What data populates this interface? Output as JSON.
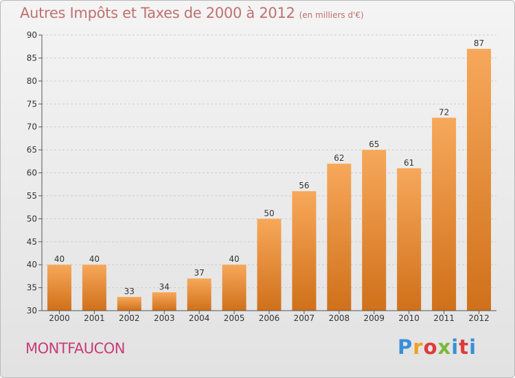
{
  "header": {
    "title": "Autres Impôts et Taxes de 2000 à 2012",
    "unit": "(en milliers d'€)"
  },
  "footer": {
    "commune": "MONTFAUCON",
    "logo_letters": [
      "P",
      "r",
      "o",
      "x",
      "i",
      "t",
      "i"
    ]
  },
  "colors": {
    "bar_top": "#f7a85a",
    "bar_bottom": "#d0701a",
    "axis": "#555555",
    "grid": "#cccccc",
    "commune": "#c83c78",
    "title": "#c07070"
  },
  "chart_data": {
    "type": "bar",
    "title": "Autres Impôts et Taxes de 2000 à 2012",
    "subtitle": "(en milliers d'€)",
    "xlabel": "",
    "ylabel": "",
    "categories": [
      "2000",
      "2001",
      "2002",
      "2003",
      "2004",
      "2005",
      "2006",
      "2007",
      "2008",
      "2009",
      "2010",
      "2011",
      "2012"
    ],
    "values": [
      40,
      40,
      33,
      34,
      37,
      40,
      50,
      56,
      62,
      65,
      61,
      72,
      87
    ],
    "ylim": [
      30,
      90
    ],
    "yticks": [
      30,
      35,
      40,
      45,
      50,
      55,
      60,
      65,
      70,
      75,
      80,
      85,
      90
    ],
    "data_labels": true,
    "grid": "horizontal-dashed",
    "legend": "none"
  }
}
